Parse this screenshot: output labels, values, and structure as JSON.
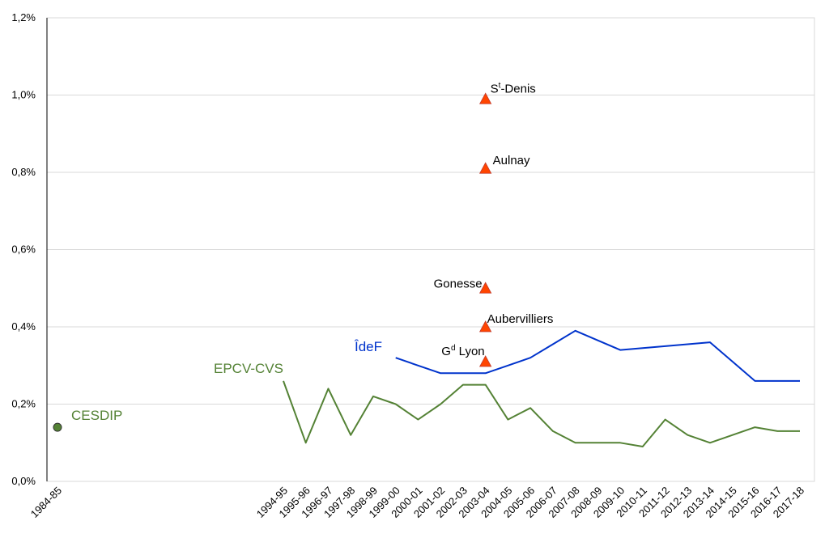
{
  "chart_data": {
    "type": "line",
    "ylim": [
      0,
      1.2
    ],
    "y_ticks": [
      "0,0%",
      "0,2%",
      "0,4%",
      "0,6%",
      "0,8%",
      "1,0%",
      "1,2%"
    ],
    "y_tick_values": [
      0,
      0.2,
      0.4,
      0.6,
      0.8,
      1.0,
      1.2
    ],
    "grid": "horizontal",
    "categories": [
      "1984-85",
      "1994-95",
      "1995-96",
      "1996-97",
      "1997-98",
      "1998-99",
      "1999-00",
      "2000-01",
      "2001-02",
      "2002-03",
      "2003-04",
      "2004-05",
      "2005-06",
      "2006-07",
      "2007-08",
      "2008-09",
      "2009-10",
      "2010-11",
      "2011-12",
      "2012-13",
      "2013-14",
      "2014-15",
      "2015-16",
      "2016-17",
      "2017-18"
    ],
    "series": [
      {
        "name": "EPCV-CVS",
        "color": "#548235",
        "values": [
          null,
          0.26,
          0.1,
          0.24,
          0.12,
          0.22,
          0.2,
          0.16,
          0.2,
          0.25,
          0.25,
          0.16,
          0.19,
          0.13,
          0.1,
          0.1,
          0.1,
          0.09,
          0.16,
          0.12,
          0.1,
          0.12,
          0.14,
          0.13,
          0.13
        ]
      },
      {
        "name": "ÎdeF",
        "color": "#0033cc",
        "values": [
          null,
          null,
          null,
          null,
          null,
          null,
          0.32,
          0.3,
          0.28,
          0.28,
          0.28,
          0.3,
          0.32,
          0.355,
          0.39,
          0.365,
          0.34,
          0.345,
          0.35,
          0.355,
          0.36,
          0.31,
          0.26,
          0.26,
          0.26
        ]
      },
      {
        "name": "CESDIP",
        "color": "#548235",
        "marker": "circle",
        "points": [
          {
            "x": "1984-85",
            "y": 0.14
          }
        ]
      }
    ],
    "annotations": [
      {
        "base": "S",
        "sup": "t",
        "rest": "-Denis",
        "x": "2003-04",
        "y": 0.99
      },
      {
        "base": "Aulnay",
        "sup": "",
        "rest": "",
        "x": "2003-04",
        "y": 0.81
      },
      {
        "base": "Gonesse",
        "sup": "",
        "rest": "",
        "x": "2003-04",
        "y": 0.5
      },
      {
        "base": "Aubervilliers",
        "sup": "",
        "rest": "",
        "x": "2003-04",
        "y": 0.4
      },
      {
        "base": "G",
        "sup": "d",
        "rest": " Lyon",
        "x": "2003-04",
        "y": 0.31
      }
    ],
    "annotation_marker_color": "#ff4500"
  }
}
